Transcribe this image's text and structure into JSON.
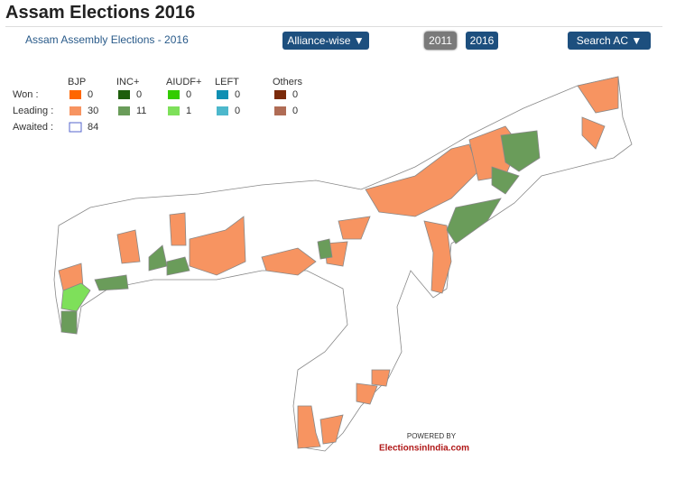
{
  "header": {
    "title": "Assam Elections 2016",
    "subtitle": "Assam Assembly Elections - 2016"
  },
  "controls": {
    "view": "Alliance-wise ▼",
    "years": [
      "2011",
      "2016"
    ],
    "search": "Search AC ▼"
  },
  "legend": {
    "columns": [
      "BJP",
      "INC+",
      "AIUDF+",
      "LEFT",
      "Others"
    ],
    "rows": [
      {
        "label": "Won :",
        "counts": [
          0,
          0,
          0,
          0,
          0
        ]
      },
      {
        "label": "Leading :",
        "counts": [
          30,
          11,
          1,
          0,
          0
        ]
      },
      {
        "label": "Awaited :",
        "counts": [
          84
        ]
      }
    ]
  },
  "footer": {
    "powered_by": "POWERED BY",
    "brand": "ElectionsinIndia.com"
  }
}
